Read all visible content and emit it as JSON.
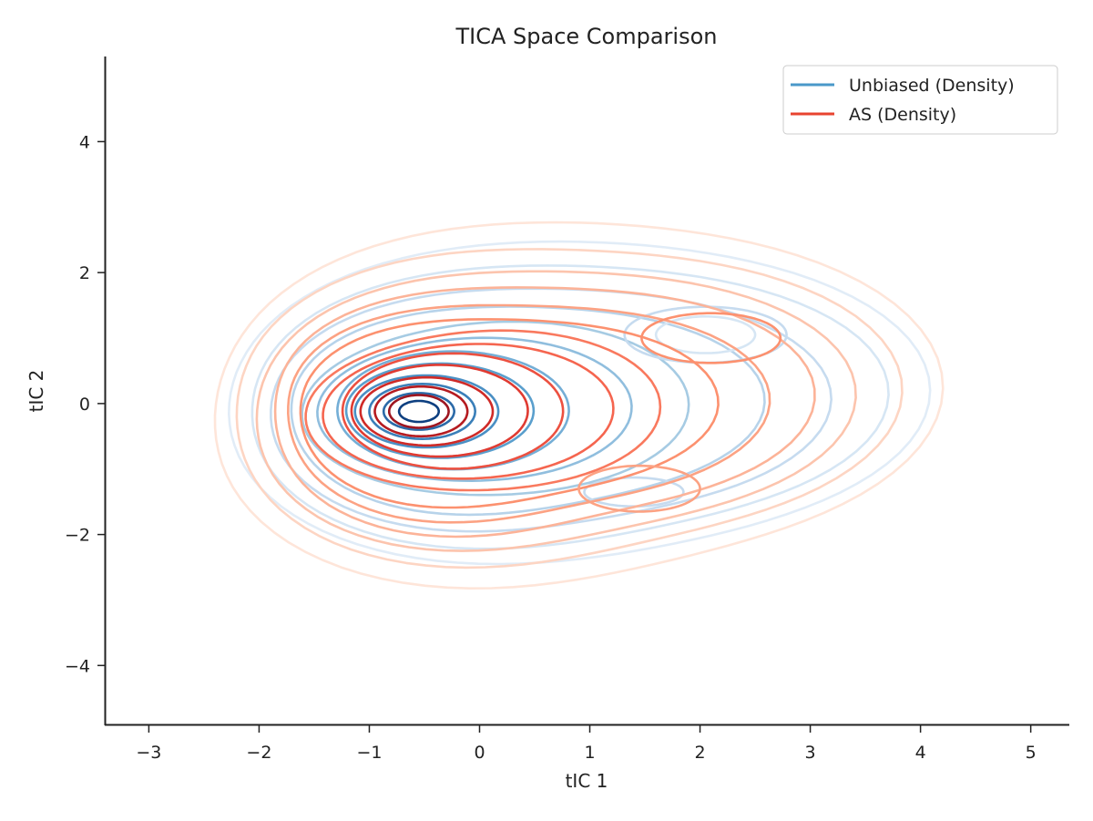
{
  "chart_data": {
    "type": "contour",
    "title": "TICA Space Comparison",
    "xlabel": "tIC 1",
    "ylabel": "tIC 2",
    "xlim": [
      -3.4,
      5.35
    ],
    "ylim": [
      -4.9,
      5.3
    ],
    "xticks": [
      -3,
      -2,
      -1,
      0,
      1,
      2,
      3,
      4,
      5
    ],
    "yticks": [
      -4,
      -2,
      0,
      2,
      4
    ],
    "grid": false,
    "legend_position": "top-right",
    "series": [
      {
        "name": "Unbiased (Density)",
        "color": "#4a98c9",
        "colormap": "Blues",
        "peak": [
          -0.55,
          -0.12
        ],
        "secondary_modes": [
          [
            2.05,
            1.05
          ],
          [
            1.4,
            -1.35
          ]
        ]
      },
      {
        "name": "AS (Density)",
        "color": "#e8432f",
        "colormap": "Reds",
        "peak": [
          -0.55,
          -0.12
        ],
        "secondary_modes": [
          [
            2.2,
            1.0
          ],
          [
            1.45,
            -1.35
          ]
        ]
      }
    ]
  }
}
